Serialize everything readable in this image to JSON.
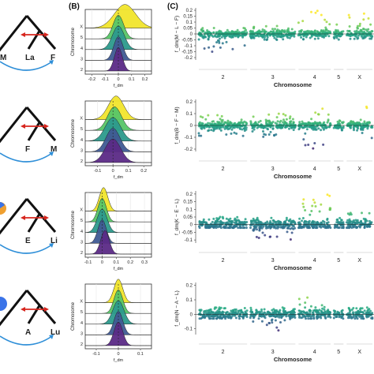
{
  "panel_labels": {
    "B": "(B)",
    "C": "(C)"
  },
  "colors": {
    "tree": "#111111",
    "arrow_red": "#d7261e",
    "arc_blue": "#2f8fd8",
    "node_blue": "#3a73e8",
    "node_orange": "#f0a030",
    "ridge_chr2": "#5b2a86",
    "ridge_chr3": "#3f5a93",
    "ridge_chr4": "#2c9a8c",
    "ridge_chr5": "#56c567",
    "ridge_chrX": "#f1e52c"
  },
  "rows": [
    {
      "tree": {
        "left_label": "M",
        "center_label": "La",
        "right_label": "F",
        "node_dot": ""
      },
      "ridge": {
        "ylabel": "Chromosome",
        "xlabel": "f_dm",
        "x_ticks": [
          -0.2,
          -0.1,
          0.0,
          0.1,
          0.2
        ],
        "y_categories": [
          "2",
          "3",
          "4",
          "5",
          "X"
        ],
        "xlim": [
          -0.25,
          0.25
        ]
      },
      "manhattan": {
        "ylabel": "f_dm(M − L − F)",
        "xlabel": "Chromosome",
        "y_ticks": [
          0.2,
          0.15,
          0.1,
          0.05,
          0,
          -0.05,
          -0.1,
          -0.15,
          -0.2
        ],
        "ylim": [
          -0.22,
          0.22
        ],
        "chromosomes": [
          "2",
          "3",
          "4",
          "5",
          "X"
        ]
      }
    },
    {
      "tree": {
        "left_label": "",
        "center_label": "F",
        "right_label": "M",
        "node_dot": ""
      },
      "ridge": {
        "ylabel": "Chromosome",
        "xlabel": "f_dm",
        "x_ticks": [
          -0.1,
          0.0,
          0.1,
          0.2
        ],
        "y_categories": [
          "2",
          "3",
          "4",
          "5",
          "X"
        ],
        "xlim": [
          -0.18,
          0.25
        ]
      },
      "manhattan": {
        "ylabel": "f_dm(B − F − M)",
        "xlabel": "Chromosome",
        "y_ticks": [
          0.2,
          0.1,
          0.0,
          -0.1,
          -0.2
        ],
        "ylim": [
          -0.22,
          0.22
        ],
        "chromosomes": [
          "2",
          "3",
          "4",
          "5",
          "X"
        ]
      }
    },
    {
      "tree": {
        "left_label": "",
        "center_label": "E",
        "right_label": "Li",
        "node_dot": "orange"
      },
      "ridge": {
        "ylabel": "Chromosome",
        "xlabel": "f_dm",
        "x_ticks": [
          -0.1,
          0.0,
          0.1,
          0.2,
          0.3
        ],
        "y_categories": [
          "2",
          "3",
          "4",
          "5",
          "X"
        ],
        "xlim": [
          -0.12,
          0.35
        ]
      },
      "manhattan": {
        "ylabel": "f_dm(K − E − L)",
        "xlabel": "Chromosome",
        "y_ticks": [
          0.2,
          0.15,
          0.1,
          0.05,
          0.0,
          -0.05,
          -0.1
        ],
        "ylim": [
          -0.12,
          0.22
        ],
        "chromosomes": [
          "2",
          "3",
          "4",
          "5",
          "X"
        ]
      }
    },
    {
      "tree": {
        "left_label": "",
        "center_label": "A",
        "right_label": "Lu",
        "node_dot": "blue"
      },
      "ridge": {
        "ylabel": "Chromosome",
        "xlabel": "f_dm",
        "x_ticks": [
          -0.1,
          0.0,
          0.1
        ],
        "y_categories": [
          "2",
          "3",
          "4",
          "5",
          "X"
        ],
        "xlim": [
          -0.15,
          0.15
        ]
      },
      "manhattan": {
        "ylabel": "f_dm(N − A − L)",
        "xlabel": "Chromosome",
        "y_ticks": [
          0.2,
          0.1,
          0.0,
          -0.1
        ],
        "ylim": [
          -0.14,
          0.22
        ],
        "chromosomes": [
          "2",
          "3",
          "4",
          "5",
          "X"
        ]
      }
    }
  ],
  "chart_data": [
    {
      "type": "area",
      "title": "",
      "xlabel": "f_dm",
      "ylabel": "Chromosome",
      "series": [
        {
          "name": "2",
          "center": 0.0,
          "spread": 0.03
        },
        {
          "name": "3",
          "center": 0.0,
          "spread": 0.035
        },
        {
          "name": "4",
          "center": 0.0,
          "spread": 0.045
        },
        {
          "name": "5",
          "center": 0.0,
          "spread": 0.04
        },
        {
          "name": "X",
          "center": 0.05,
          "spread": 0.08
        }
      ]
    },
    {
      "type": "scatter",
      "title": "",
      "xlabel": "Chromosome",
      "ylabel": "f_dm(M − L − F)",
      "series": [
        {
          "name": "2",
          "range": [
            -0.15,
            0.05
          ]
        },
        {
          "name": "3",
          "range": [
            -0.05,
            0.07
          ]
        },
        {
          "name": "4",
          "range": [
            -0.05,
            0.2
          ]
        },
        {
          "name": "5",
          "range": [
            -0.05,
            0.08
          ]
        },
        {
          "name": "X",
          "range": [
            -0.05,
            0.2
          ]
        }
      ]
    },
    {
      "type": "area",
      "title": "",
      "xlabel": "f_dm",
      "ylabel": "Chromosome",
      "series": [
        {
          "name": "2",
          "center": 0.0,
          "spread": 0.05
        },
        {
          "name": "3",
          "center": 0.0,
          "spread": 0.045
        },
        {
          "name": "4",
          "center": 0.0,
          "spread": 0.05
        },
        {
          "name": "5",
          "center": 0.01,
          "spread": 0.045
        },
        {
          "name": "X",
          "center": 0.02,
          "spread": 0.05
        }
      ]
    },
    {
      "type": "scatter",
      "title": "",
      "xlabel": "Chromosome",
      "ylabel": "f_dm(B − F − M)",
      "series": [
        {
          "name": "2",
          "range": [
            -0.1,
            0.1
          ]
        },
        {
          "name": "3",
          "range": [
            -0.1,
            0.1
          ]
        },
        {
          "name": "4",
          "range": [
            -0.2,
            0.18
          ]
        },
        {
          "name": "5",
          "range": [
            -0.05,
            0.05
          ]
        },
        {
          "name": "X",
          "range": [
            -0.12,
            0.18
          ]
        }
      ]
    },
    {
      "type": "area",
      "title": "",
      "xlabel": "f_dm",
      "ylabel": "Chromosome",
      "series": [
        {
          "name": "2",
          "center": 0.02,
          "spread": 0.03
        },
        {
          "name": "3",
          "center": 0.0,
          "spread": 0.03
        },
        {
          "name": "4",
          "center": 0.0,
          "spread": 0.035
        },
        {
          "name": "5",
          "center": 0.0,
          "spread": 0.03
        },
        {
          "name": "X",
          "center": 0.01,
          "spread": 0.03
        }
      ]
    },
    {
      "type": "scatter",
      "title": "",
      "xlabel": "Chromosome",
      "ylabel": "f_dm(K − E − L)",
      "series": [
        {
          "name": "2",
          "range": [
            -0.02,
            0.05
          ]
        },
        {
          "name": "3",
          "range": [
            -0.1,
            0.05
          ]
        },
        {
          "name": "4",
          "range": [
            -0.02,
            0.2
          ]
        },
        {
          "name": "5",
          "range": [
            -0.02,
            0.05
          ]
        },
        {
          "name": "X",
          "range": [
            -0.02,
            0.08
          ]
        }
      ]
    },
    {
      "type": "area",
      "title": "",
      "xlabel": "f_dm",
      "ylabel": "Chromosome",
      "series": [
        {
          "name": "2",
          "center": 0.0,
          "spread": 0.02
        },
        {
          "name": "3",
          "center": 0.0,
          "spread": 0.02
        },
        {
          "name": "4",
          "center": 0.0,
          "spread": 0.025
        },
        {
          "name": "5",
          "center": 0.0,
          "spread": 0.02
        },
        {
          "name": "X",
          "center": 0.0,
          "spread": 0.02
        }
      ]
    },
    {
      "type": "scatter",
      "title": "",
      "xlabel": "Chromosome",
      "ylabel": "f_dm(N − A − L)",
      "series": [
        {
          "name": "2",
          "range": [
            -0.03,
            0.05
          ]
        },
        {
          "name": "3",
          "range": [
            -0.12,
            0.05
          ]
        },
        {
          "name": "4",
          "range": [
            -0.03,
            0.15
          ]
        },
        {
          "name": "5",
          "range": [
            -0.03,
            0.2
          ]
        },
        {
          "name": "X",
          "range": [
            -0.03,
            0.05
          ]
        }
      ]
    }
  ]
}
